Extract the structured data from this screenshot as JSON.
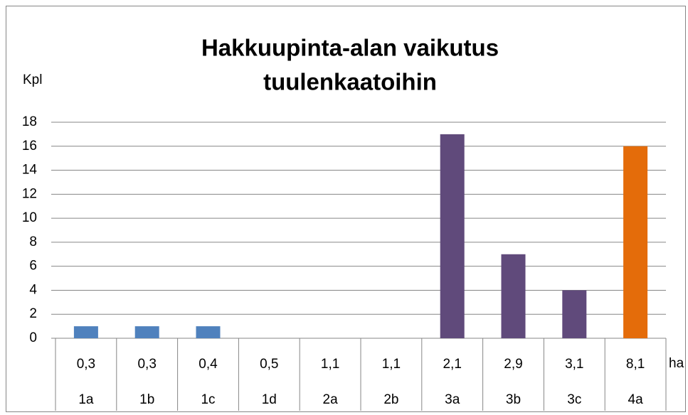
{
  "chart_data": {
    "type": "bar",
    "title_lines": [
      "Hakkuupinta-alan vaikutus",
      "tuulenkaatoihin"
    ],
    "y_label": "Kpl",
    "x_label": "ha",
    "categories": [
      "1a",
      "1b",
      "1c",
      "1d",
      "2a",
      "2b",
      "3a",
      "3b",
      "3c",
      "4a"
    ],
    "category_areas": [
      "0,3",
      "0,3",
      "0,4",
      "0,5",
      "1,1",
      "1,1",
      "2,1",
      "2,9",
      "3,1",
      "8,1"
    ],
    "values": [
      1,
      1,
      1,
      0,
      0,
      0,
      17,
      7,
      4,
      16
    ],
    "colors": [
      "#4f81bd",
      "#4f81bd",
      "#4f81bd",
      "#4f81bd",
      "#4f81bd",
      "#4f81bd",
      "#604a7b",
      "#604a7b",
      "#604a7b",
      "#e46c0a"
    ],
    "ylim": [
      0,
      18
    ],
    "yticks": [
      0,
      2,
      4,
      6,
      8,
      10,
      12,
      14,
      16,
      18
    ],
    "grid": true
  }
}
